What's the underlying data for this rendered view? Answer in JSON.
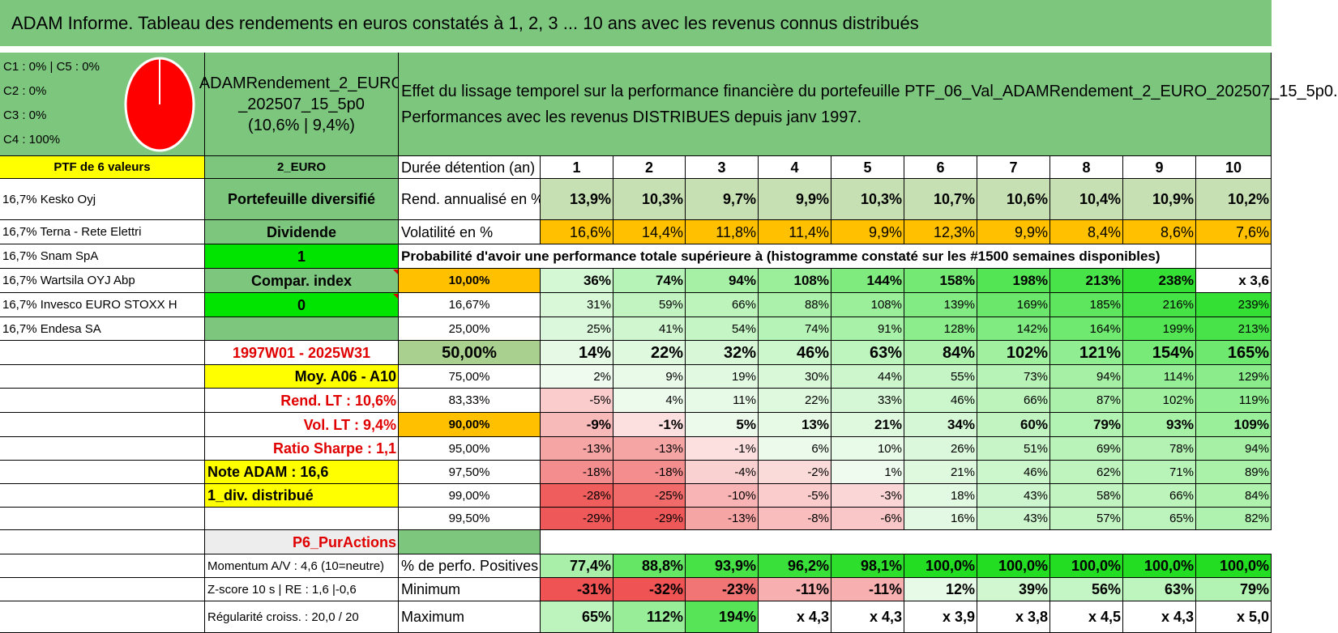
{
  "title": "ADAM Informe. Tableau des rendements en euros constatés à 1, 2, 3 ... 10 ans avec les revenus connus distribués",
  "classes": [
    "C1 : 0% | C5 : 0%",
    "C2 : 0%",
    "C3 : 0%",
    "C4 : 100%"
  ],
  "pie": {
    "color": "#ff0000",
    "share_c4": 1.0
  },
  "portfolio": {
    "name_lines": [
      "ADAMRendement_2_EURO",
      "_202507_15_5p0",
      "(10,6% | 9,4%)"
    ]
  },
  "description_lines": [
    "Effet du lissage temporel sur la performance financière du portefeuille PTF_06_Val_ADAMRendement_2_EURO_202507_15_5p0.",
    "Performances avec les revenus DISTRIBUES depuis janv 1997."
  ],
  "holdings_header": "PTF de 6 valeurs",
  "holdings": [
    "16,7% Kesko Oyj",
    "16,7% Terna - Rete Elettri",
    "16,7% Snam SpA",
    "16,7% Wartsila OYJ Abp",
    "16,7% Invesco EURO STOXX H",
    "16,7% Endesa SA"
  ],
  "info": {
    "code": "2_EURO",
    "diversification": "Portefeuille diversifié",
    "income_type": "Dividende",
    "value_1": "1",
    "compar_index": "Compar. index",
    "value_0": "0",
    "period": "1997W01 - 2025W31",
    "moy": "Moy. A06 - A10",
    "rend_lt": "Rend. LT : 10,6%",
    "vol_lt": "Vol. LT : 9,4%",
    "sharpe": "Ratio Sharpe : 1,1",
    "note": "Note ADAM : 16,6",
    "div": "1_div. distribué",
    "category": "P6_PurActions",
    "momentum": "Momentum A/V : 4,6 (10=neutre)",
    "zscore": "Z-score 10 s | RE : 1,6 |-0,6",
    "regularite": "Régularité croiss. : 20,0 / 20"
  },
  "labels": {
    "duree": "Durée détention (an)",
    "rend": "Rend. annualisé en %",
    "vol": "Volatilité en %",
    "proba": "Probabilité d'avoir une performance totale supérieure à (histogramme constaté sur les #1500 semaines disponibles)",
    "positives": "% de perfo. Positives",
    "minimum": "Minimum",
    "maximum": "Maximum"
  },
  "years": [
    "1",
    "2",
    "3",
    "4",
    "5",
    "6",
    "7",
    "8",
    "9",
    "10"
  ],
  "rend": [
    "13,9%",
    "10,3%",
    "9,7%",
    "9,9%",
    "10,3%",
    "10,7%",
    "10,6%",
    "10,4%",
    "10,9%",
    "10,2%"
  ],
  "vol": [
    "16,6%",
    "14,4%",
    "11,8%",
    "11,4%",
    "9,9%",
    "12,3%",
    "9,9%",
    "8,4%",
    "8,6%",
    "7,6%"
  ],
  "quantiles": [
    {
      "p": "10,00%",
      "v": [
        "36%",
        "74%",
        "94%",
        "108%",
        "144%",
        "158%",
        "198%",
        "213%",
        "238%",
        "x 3,6"
      ]
    },
    {
      "p": "16,67%",
      "v": [
        "31%",
        "59%",
        "66%",
        "88%",
        "108%",
        "139%",
        "169%",
        "185%",
        "216%",
        "239%"
      ]
    },
    {
      "p": "25,00%",
      "v": [
        "25%",
        "41%",
        "54%",
        "74%",
        "91%",
        "128%",
        "142%",
        "164%",
        "199%",
        "213%"
      ]
    },
    {
      "p": "50,00%",
      "v": [
        "14%",
        "22%",
        "32%",
        "46%",
        "63%",
        "84%",
        "102%",
        "121%",
        "154%",
        "165%"
      ]
    },
    {
      "p": "75,00%",
      "v": [
        "2%",
        "9%",
        "19%",
        "30%",
        "44%",
        "55%",
        "73%",
        "94%",
        "114%",
        "129%"
      ]
    },
    {
      "p": "83,33%",
      "v": [
        "-5%",
        "4%",
        "11%",
        "22%",
        "33%",
        "46%",
        "66%",
        "87%",
        "102%",
        "119%"
      ]
    },
    {
      "p": "90,00%",
      "v": [
        "-9%",
        "-1%",
        "5%",
        "13%",
        "21%",
        "34%",
        "60%",
        "79%",
        "93%",
        "109%"
      ]
    },
    {
      "p": "95,00%",
      "v": [
        "-13%",
        "-13%",
        "-1%",
        "6%",
        "10%",
        "26%",
        "51%",
        "69%",
        "78%",
        "94%"
      ]
    },
    {
      "p": "97,50%",
      "v": [
        "-18%",
        "-18%",
        "-4%",
        "-2%",
        "1%",
        "21%",
        "46%",
        "62%",
        "71%",
        "89%"
      ]
    },
    {
      "p": "99,00%",
      "v": [
        "-28%",
        "-25%",
        "-10%",
        "-5%",
        "-3%",
        "18%",
        "43%",
        "58%",
        "66%",
        "84%"
      ]
    },
    {
      "p": "99,50%",
      "v": [
        "-29%",
        "-29%",
        "-13%",
        "-8%",
        "-6%",
        "16%",
        "43%",
        "57%",
        "65%",
        "82%"
      ]
    }
  ],
  "positives": [
    "77,4%",
    "88,8%",
    "93,9%",
    "96,2%",
    "98,1%",
    "100,0%",
    "100,0%",
    "100,0%",
    "100,0%",
    "100,0%"
  ],
  "minimum": [
    "-31%",
    "-32%",
    "-23%",
    "-11%",
    "-11%",
    "12%",
    "39%",
    "56%",
    "63%",
    "79%"
  ],
  "maximum": [
    "65%",
    "112%",
    "194%",
    "x 4,3",
    "x 4,3",
    "x 3,9",
    "x 3,8",
    "x 4,5",
    "x 4,3",
    "x 5,0"
  ]
}
